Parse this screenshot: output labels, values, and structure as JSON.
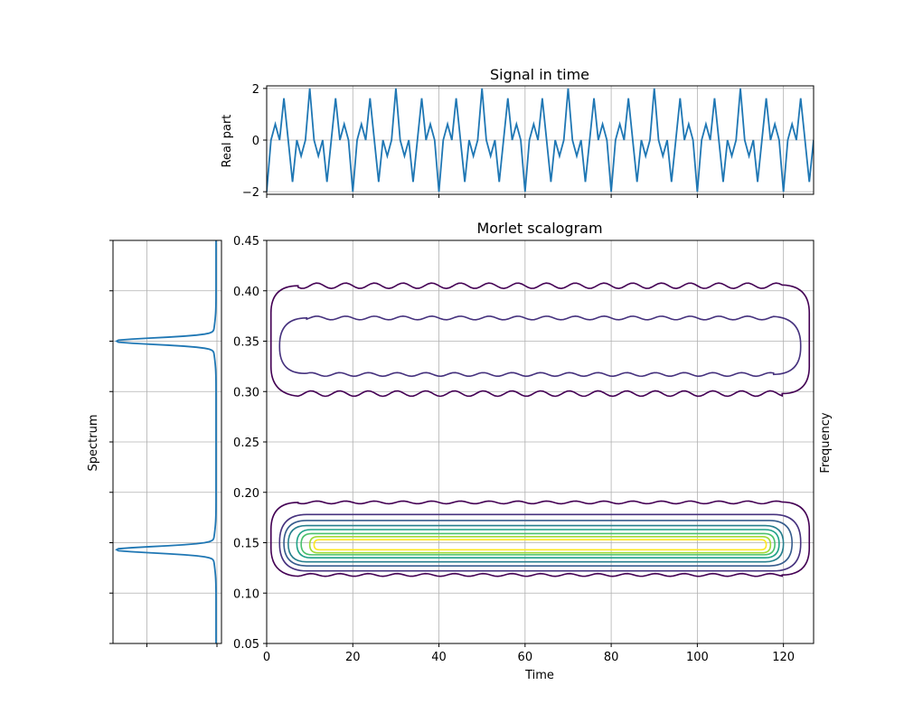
{
  "chart_data": [
    {
      "id": "signal",
      "type": "line",
      "title": "Signal in time",
      "xlabel": "",
      "ylabel": "Real part",
      "xlim": [
        0,
        127
      ],
      "ylim": [
        -2.1,
        2.1
      ],
      "xticks": [
        0,
        20,
        40,
        60,
        80,
        100,
        120
      ],
      "yticks": [
        -2,
        0,
        2
      ],
      "grid": true,
      "color": "#1f77b4",
      "series": [
        {
          "frequencies": [
            0.15,
            0.35
          ],
          "amplitude_each": 1.0,
          "sample_step": 1,
          "n_samples": 128,
          "note_values": "y(t) = -cos(2*pi*0.15*t) - cos(2*pi*0.35*t), range -2 to 2"
        }
      ]
    },
    {
      "id": "spectrum",
      "type": "line",
      "title": "",
      "xlabel": "",
      "ylabel": "Spectrum",
      "ylim": [
        0.05,
        0.45
      ],
      "grid": true,
      "color": "#1f77b4",
      "peaks": [
        {
          "frequency": 0.35,
          "relative_depth": 1.0
        },
        {
          "frequency": 0.143,
          "relative_depth": 1.0
        }
      ]
    },
    {
      "id": "scalogram",
      "type": "contour",
      "title": "Morlet scalogram",
      "xlabel": "Time",
      "ylabel": "Frequency",
      "xlim": [
        0,
        127
      ],
      "ylim": [
        0.05,
        0.45
      ],
      "xticks": [
        0,
        20,
        40,
        60,
        80,
        100,
        120
      ],
      "yticks": [
        0.05,
        0.1,
        0.15,
        0.2,
        0.25,
        0.3,
        0.35,
        0.4,
        0.45
      ],
      "grid": true,
      "colormap": "viridis",
      "bands": [
        {
          "center": 0.148,
          "levels": [
            {
              "t0": 1,
              "t1": 126,
              "f0": 0.118,
              "f1": 0.19,
              "color": "#440154"
            },
            {
              "t0": 3,
              "t1": 124,
              "f0": 0.122,
              "f1": 0.178,
              "color": "#46327e"
            },
            {
              "t0": 4,
              "t1": 122,
              "f0": 0.127,
              "f1": 0.172,
              "color": "#365c8d"
            },
            {
              "t0": 5,
              "t1": 120,
              "f0": 0.131,
              "f1": 0.167,
              "color": "#277f8e"
            },
            {
              "t0": 7,
              "t1": 119,
              "f0": 0.135,
              "f1": 0.163,
              "color": "#1fa187"
            },
            {
              "t0": 8,
              "t1": 118,
              "f0": 0.138,
              "f1": 0.159,
              "color": "#4ac16d"
            },
            {
              "t0": 10,
              "t1": 117,
              "f0": 0.14,
              "f1": 0.156,
              "color": "#a0da39"
            },
            {
              "t0": 11,
              "t1": 116,
              "f0": 0.143,
              "f1": 0.153,
              "color": "#fde725"
            }
          ]
        },
        {
          "center": 0.35,
          "levels": [
            {
              "t0": 1,
              "t1": 126,
              "f0": 0.298,
              "f1": 0.405,
              "color": "#440154"
            },
            {
              "t0": 3,
              "t1": 124,
              "f0": 0.317,
              "f1": 0.373,
              "color": "#46327e"
            }
          ]
        }
      ]
    }
  ]
}
